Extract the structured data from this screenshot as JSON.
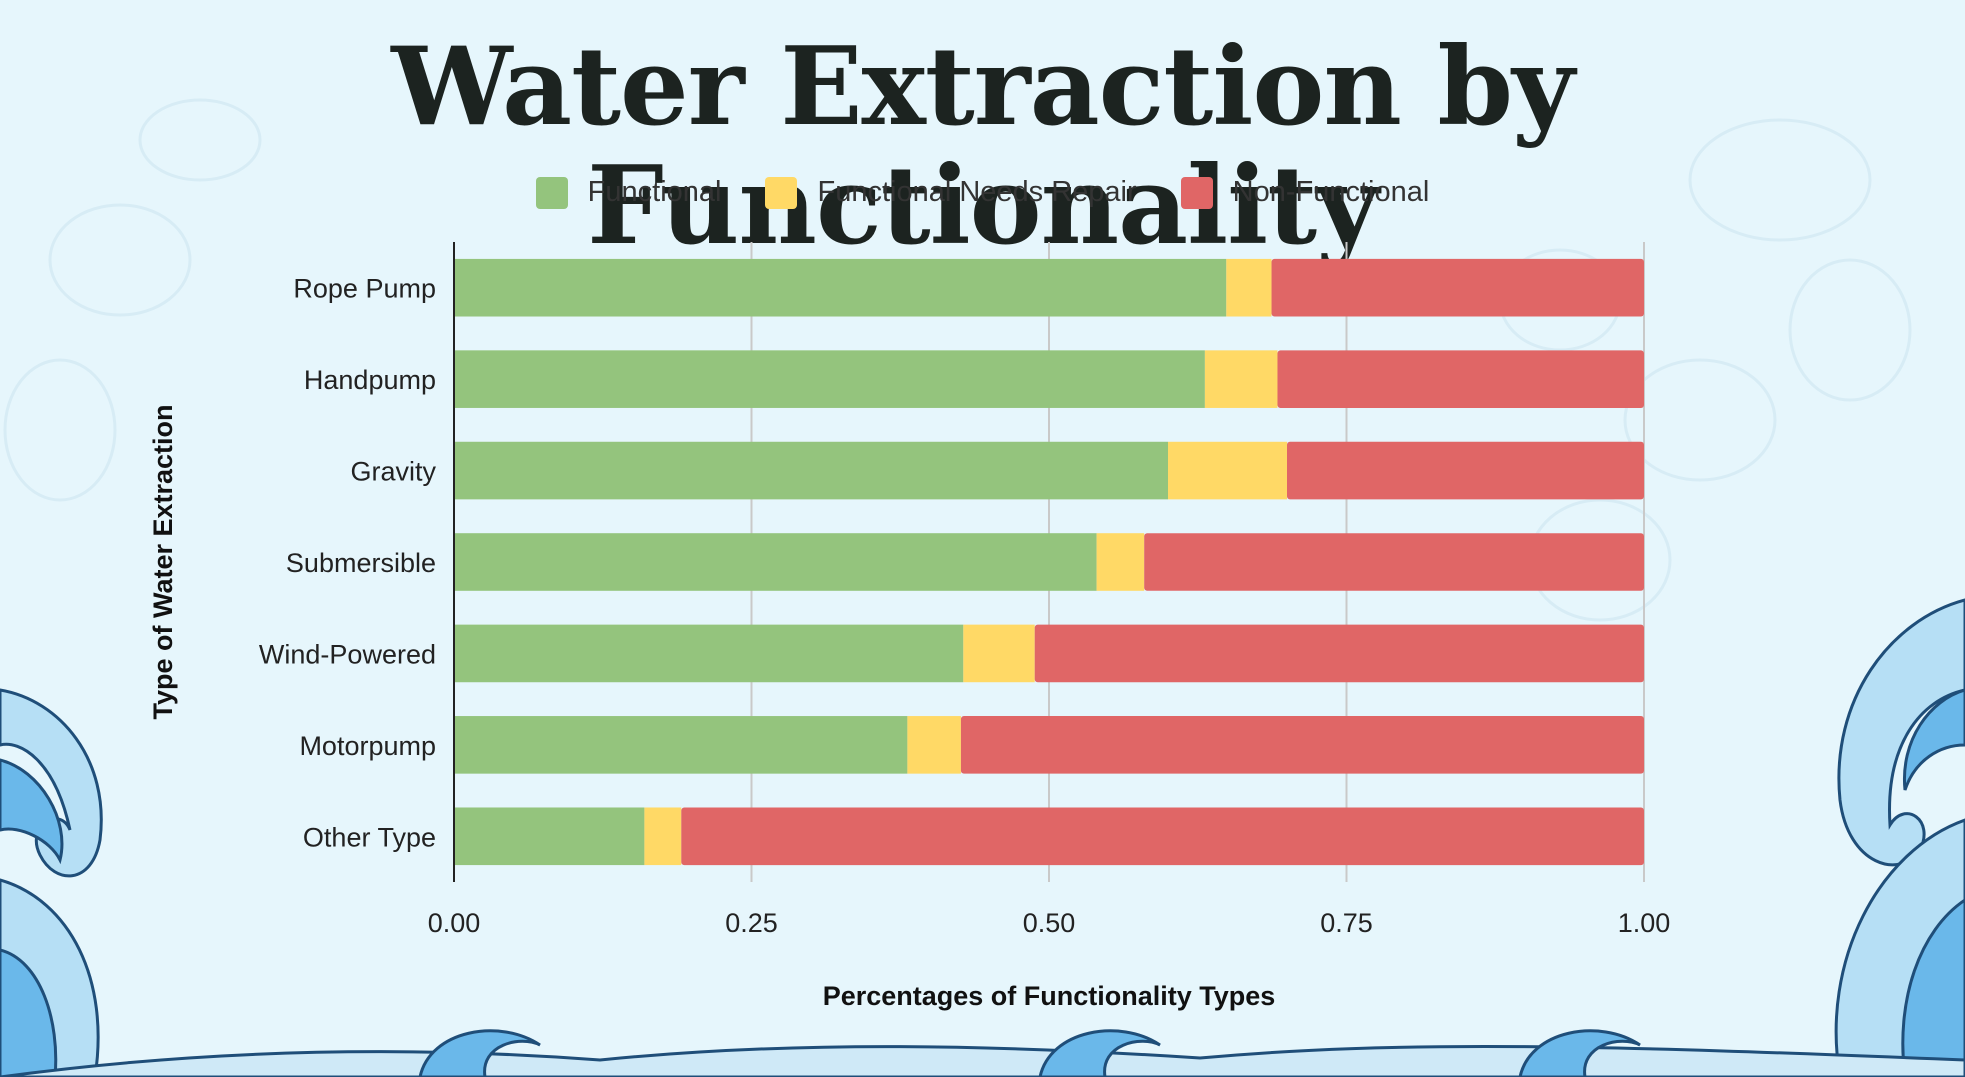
{
  "colors": {
    "background": "#e6f6fc",
    "functional": "#94c47d",
    "needs_repair": "#ffd966",
    "non_functional": "#e06666",
    "wave_light": "#b6dff5",
    "wave_mid": "#6ab8ea",
    "wave_outline": "#1f4e79"
  },
  "chart_data": {
    "type": "bar",
    "orientation": "horizontal",
    "stacked": true,
    "title": "Water Extraction by Functionality",
    "xlabel": "Percentages of Functionality Types",
    "ylabel": "Type of Water Extraction",
    "xlim": [
      0,
      1
    ],
    "x_ticks": [
      "0.00",
      "0.25",
      "0.50",
      "0.75",
      "1.00"
    ],
    "grid": "vertical",
    "legend_position": "top",
    "categories": [
      "Rope Pump",
      "Handpump",
      "Gravity",
      "Submersible",
      "Wind-Powered",
      "Motorpump",
      "Other Type"
    ],
    "series": [
      {
        "name": "Functional",
        "color": "#94c47d",
        "values": [
          0.649,
          0.631,
          0.6,
          0.54,
          0.428,
          0.381,
          0.16
        ]
      },
      {
        "name": "Functional Needs Repair",
        "color": "#ffd966",
        "values": [
          0.038,
          0.061,
          0.1,
          0.04,
          0.06,
          0.045,
          0.031
        ]
      },
      {
        "name": "Non-Functional",
        "color": "#e06666",
        "values": [
          0.313,
          0.308,
          0.3,
          0.42,
          0.512,
          0.574,
          0.809
        ]
      }
    ]
  }
}
